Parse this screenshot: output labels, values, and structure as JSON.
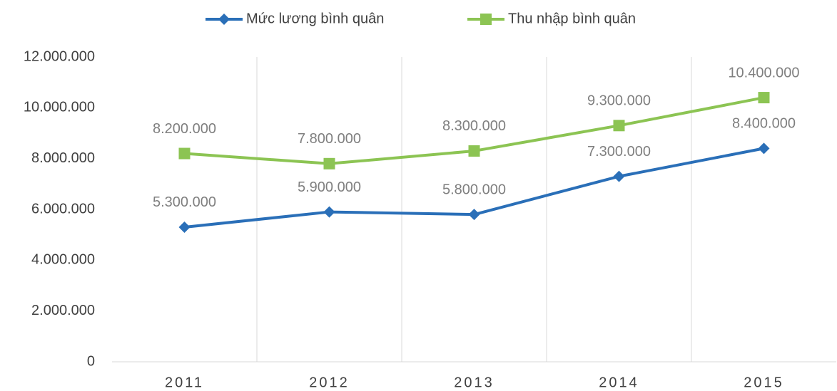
{
  "chart_data": {
    "type": "line",
    "categories": [
      "2011",
      "2012",
      "2013",
      "2014",
      "2015"
    ],
    "series": [
      {
        "name": "Mức lương bình quân",
        "color": "#2a6fb8",
        "marker": "diamond",
        "values": [
          5300000,
          5900000,
          5800000,
          7300000,
          8400000
        ],
        "value_labels": [
          "5.300.000",
          "5.900.000",
          "5.800.000",
          "7.300.000",
          "8.400.000"
        ]
      },
      {
        "name": "Thu nhập bình quân",
        "color": "#8cc453",
        "marker": "square",
        "values": [
          8200000,
          7800000,
          8300000,
          9300000,
          10400000
        ],
        "value_labels": [
          "8.200.000",
          "7.800.000",
          "8.300.000",
          "9.300.000",
          "10.400.000"
        ]
      }
    ],
    "ylim": [
      0,
      12000000
    ],
    "yticks": [
      0,
      {
        "value": 2000000,
        "label": "2.000.000"
      },
      {
        "value": 4000000,
        "label": "4.000.000"
      },
      {
        "value": 6000000,
        "label": "6.000.000"
      },
      {
        "value": 8000000,
        "label": "8.000.000"
      },
      {
        "value": 10000000,
        "label": "10.000.000"
      },
      {
        "value": 12000000,
        "label": "12.000.000"
      }
    ],
    "grid": "x",
    "legend": "top"
  }
}
